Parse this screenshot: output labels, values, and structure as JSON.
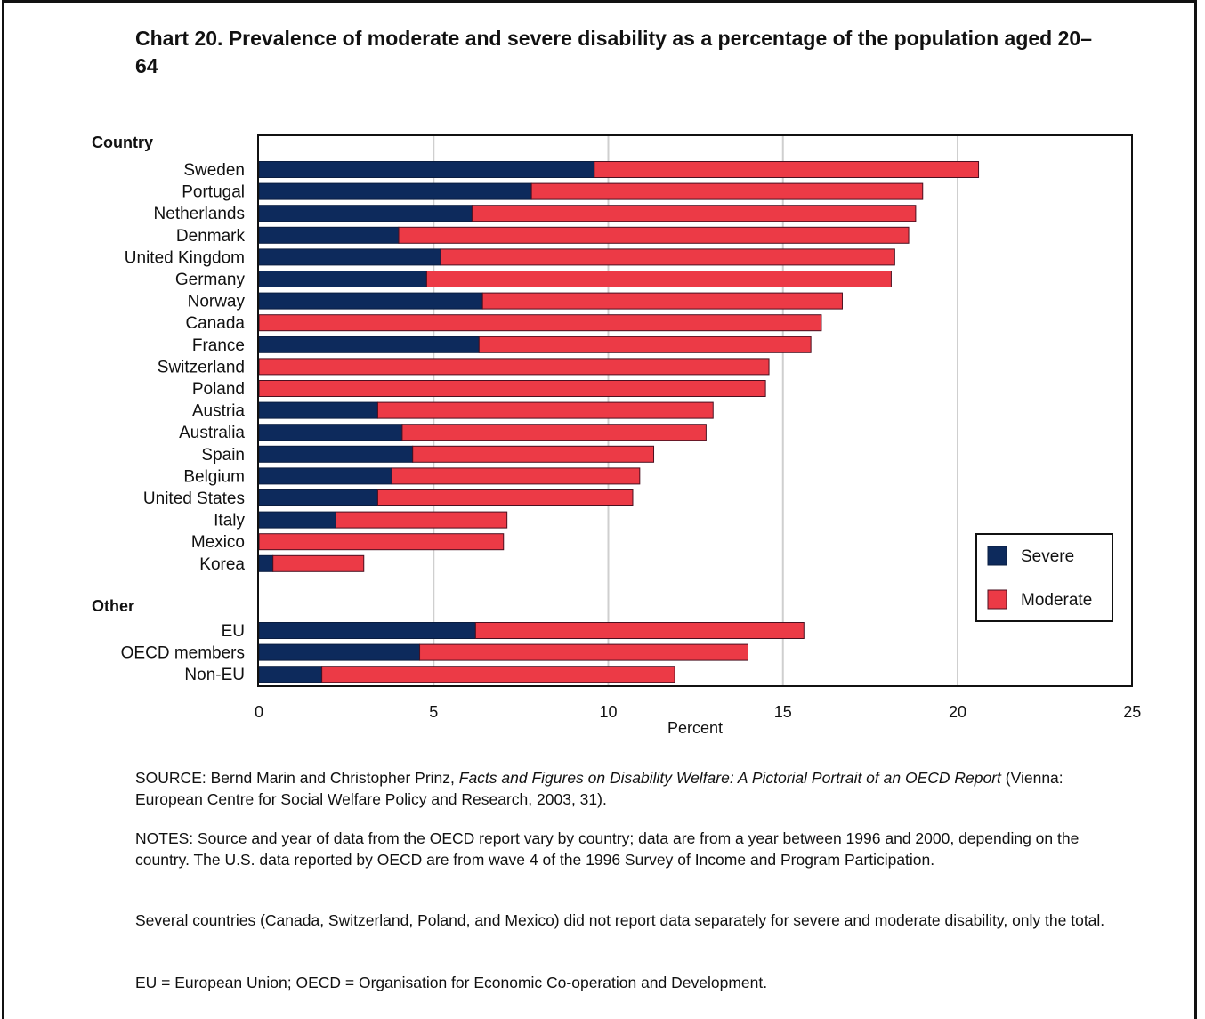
{
  "title": "Chart 20. Prevalence of moderate and severe disability as a percentage of the population aged 20–64",
  "notes": {
    "source_prefix": "SOURCE: Bernd Marin and Christopher Prinz, ",
    "source_title": "Facts and Figures on Disability Welfare: A Pictorial Portrait of an OECD Report",
    "source_suffix": " (Vienna: European Centre for Social Welfare Policy and Research, 2003, 31).",
    "notes_text": "NOTES: Source and year of data from the OECD report vary by country; data are from a year between 1996 and 2000, depending on the country. The U.S. data reported by OECD are from wave 4 of the 1996 Survey of Income and Program Participation.",
    "several_text": "Several countries (Canada, Switzerland, Poland, and Mexico) did not report data separately for severe and moderate disability, only the total.",
    "abbrev_text": "EU = European Union; OECD = Organisation for Economic Co-operation and Development."
  },
  "colors": {
    "severe": "#0d2a5c",
    "moderate": "#ec3a46",
    "gridline": "#cfcfcf",
    "axis": "#111111"
  },
  "chart_data": {
    "type": "bar",
    "orientation": "horizontal",
    "stacked": true,
    "groups": [
      {
        "label": "Country",
        "categories": [
          "Sweden",
          "Portugal",
          "Netherlands",
          "Denmark",
          "United Kingdom",
          "Germany",
          "Norway",
          "Canada",
          "France",
          "Switzerland",
          "Poland",
          "Austria",
          "Australia",
          "Spain",
          "Belgium",
          "United States",
          "Italy",
          "Mexico",
          "Korea"
        ]
      },
      {
        "label": "Other",
        "categories": [
          "EU",
          "OECD members",
          "Non-EU"
        ]
      }
    ],
    "categories": [
      "Sweden",
      "Portugal",
      "Netherlands",
      "Denmark",
      "United Kingdom",
      "Germany",
      "Norway",
      "Canada",
      "France",
      "Switzerland",
      "Poland",
      "Austria",
      "Australia",
      "Spain",
      "Belgium",
      "United States",
      "Italy",
      "Mexico",
      "Korea",
      "EU",
      "OECD members",
      "Non-EU"
    ],
    "series": [
      {
        "name": "Severe",
        "values": [
          9.6,
          7.8,
          6.1,
          4.0,
          5.2,
          4.8,
          6.4,
          0,
          6.3,
          0,
          0,
          3.4,
          4.1,
          4.4,
          3.8,
          3.4,
          2.2,
          0,
          0.4,
          6.2,
          4.6,
          1.8
        ]
      },
      {
        "name": "Moderate",
        "values": [
          11.0,
          11.2,
          12.7,
          14.6,
          13.0,
          13.3,
          10.3,
          16.1,
          9.5,
          14.6,
          14.5,
          9.6,
          8.7,
          6.9,
          7.1,
          7.3,
          4.9,
          7.0,
          2.6,
          9.4,
          9.4,
          10.1
        ]
      }
    ],
    "xlabel": "Percent",
    "xlim": [
      0,
      25
    ],
    "xticks": [
      0,
      5,
      10,
      15,
      20,
      25
    ],
    "xtick_labels": [
      "0",
      "5",
      "10",
      "15",
      "20",
      "25"
    ],
    "grid": true,
    "legend_position": "bottom-right",
    "legend": [
      "Severe",
      "Moderate"
    ]
  }
}
